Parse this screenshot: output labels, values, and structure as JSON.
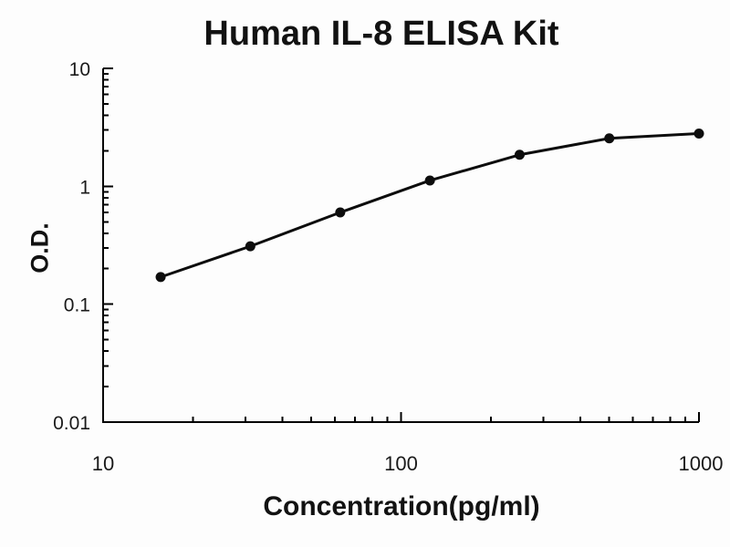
{
  "chart_data": {
    "type": "line",
    "title": "Human IL-8 ELISA Kit",
    "xlabel": "Concentration(pg/ml)",
    "ylabel": "O.D.",
    "xscale": "log",
    "yscale": "log",
    "xlim": [
      10,
      1000
    ],
    "ylim": [
      0.01,
      10
    ],
    "x": [
      15.6,
      31.2,
      62.5,
      125,
      250,
      500,
      1000
    ],
    "y": [
      0.17,
      0.31,
      0.6,
      1.12,
      1.85,
      2.55,
      2.8
    ],
    "x_ticks": [
      10,
      100,
      1000
    ],
    "x_tick_labels": [
      "10",
      "100",
      "1000"
    ],
    "y_ticks": [
      10,
      1,
      0.1,
      0.01
    ],
    "y_tick_labels": [
      "10",
      "1",
      "0.1",
      "0.01"
    ],
    "grid": false,
    "legend": null,
    "marker": "filled-circle",
    "series_name": "standard-curve",
    "line_color": "#0d0d0d",
    "marker_color": "#0d0d0d",
    "axis_color": "#000000",
    "tick_label_color": "#1a1a1a"
  }
}
